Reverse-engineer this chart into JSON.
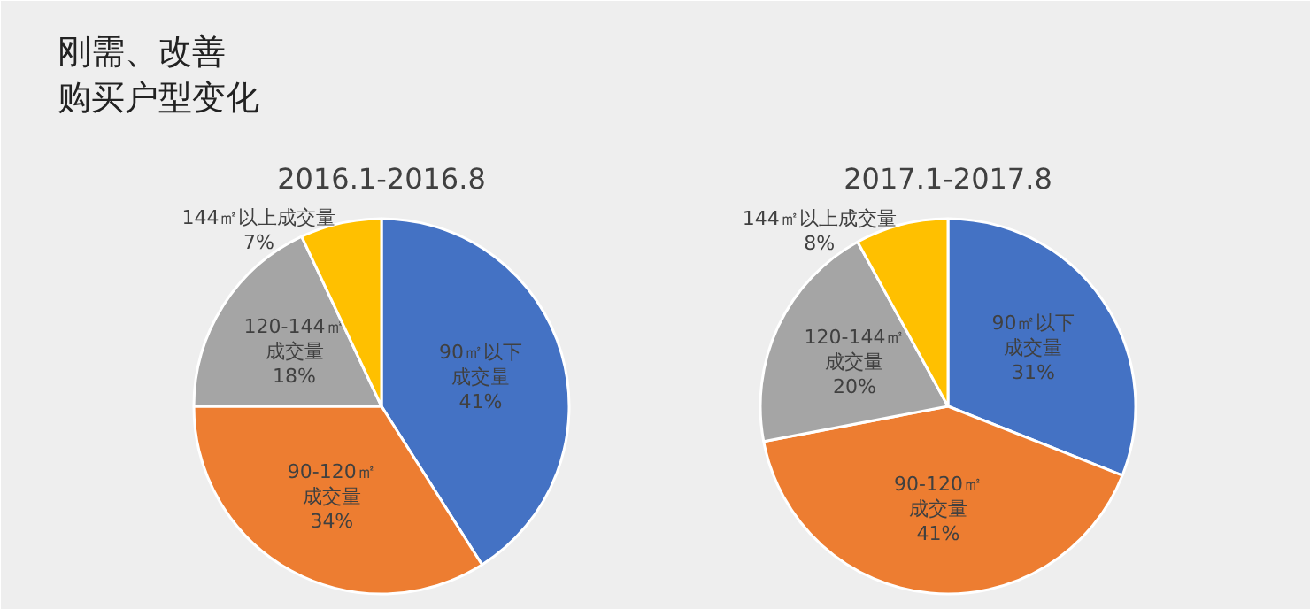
{
  "chart_data": [
    {
      "type": "other",
      "annotations": [
        "刚需、改善",
        "购买户型变化"
      ]
    },
    {
      "type": "pie",
      "title": "2016.1-2016.8",
      "categories": [
        "90㎡以下成交量",
        "90-120㎡成交量",
        "120-144㎡成交量",
        "144㎡以上成交量"
      ],
      "values": [
        41,
        34,
        18,
        7
      ],
      "colors": [
        "#4472c4",
        "#ed7d31",
        "#a5a5a5",
        "#ffc000"
      ],
      "value_labels": [
        "41%",
        "34%",
        "18%",
        "7%"
      ]
    },
    {
      "type": "pie",
      "title": "2017.1-2017.8",
      "categories": [
        "90㎡以下成交量",
        "90-120㎡成交量",
        "120-144㎡成交量",
        "144㎡以上成交量"
      ],
      "values": [
        31,
        41,
        20,
        8
      ],
      "colors": [
        "#4472c4",
        "#ed7d31",
        "#a5a5a5",
        "#ffc000"
      ],
      "value_labels": [
        "31%",
        "41%",
        "20%",
        "8%"
      ]
    }
  ]
}
